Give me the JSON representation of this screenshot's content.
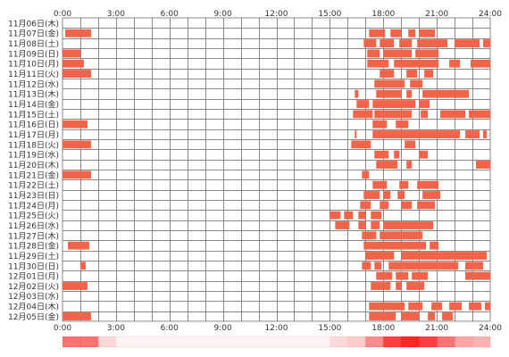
{
  "chart_data": {
    "type": "heatmap",
    "x_unit": "hour",
    "xlim": [
      0,
      24
    ],
    "x_ticks": [
      "0:00",
      "3:00",
      "6:00",
      "9:00",
      "12:00",
      "15:00",
      "18:00",
      "21:00",
      "24:00"
    ],
    "grid": true,
    "colors": {
      "activity": "#f2644a",
      "activity_light": "#f7a080",
      "grid": "#888888",
      "strip": "#ff0000"
    },
    "rows": [
      {
        "label": "11月06日(木)",
        "spans": []
      },
      {
        "label": "11月07日(金)",
        "spans": [
          [
            0.15,
            1.6
          ],
          [
            17.2,
            18.1
          ],
          [
            18.4,
            19.0
          ],
          [
            19.4,
            19.8
          ],
          [
            20.0,
            20.9
          ]
        ]
      },
      {
        "label": "11月08日(土)",
        "spans": [
          [
            16.9,
            17.6
          ],
          [
            17.8,
            18.6
          ],
          [
            18.9,
            19.6
          ],
          [
            19.9,
            21.6
          ],
          [
            22.0,
            23.4
          ],
          [
            23.6,
            24.0
          ]
        ]
      },
      {
        "label": "11月09日(日)",
        "spans": [
          [
            0.0,
            1.0
          ],
          [
            17.1,
            17.8
          ],
          [
            18.0,
            19.6
          ],
          [
            19.8,
            21.1
          ]
        ]
      },
      {
        "label": "11月10日(月)",
        "spans": [
          [
            0.0,
            1.2
          ],
          [
            17.1,
            18.3
          ],
          [
            18.6,
            21.1
          ],
          [
            21.7,
            22.3
          ],
          [
            22.9,
            24.0
          ]
        ]
      },
      {
        "label": "11月11日(火)",
        "spans": [
          [
            0.0,
            1.6
          ],
          [
            17.8,
            18.6
          ],
          [
            19.3,
            19.9
          ],
          [
            20.3,
            20.8
          ]
        ]
      },
      {
        "label": "11月12日(水)",
        "spans": [
          [
            17.5,
            19.2
          ],
          [
            19.5,
            20.2
          ]
        ]
      },
      {
        "label": "11月13日(木)",
        "spans": [
          [
            16.4,
            16.6
          ],
          [
            17.6,
            19.0
          ],
          [
            19.3,
            19.6
          ],
          [
            20.2,
            22.8
          ]
        ]
      },
      {
        "label": "11月14日(金)",
        "spans": [
          [
            16.5,
            17.2
          ],
          [
            17.4,
            19.8
          ],
          [
            20.0,
            20.6
          ]
        ]
      },
      {
        "label": "11月15日(土)",
        "spans": [
          [
            16.3,
            17.4
          ],
          [
            17.5,
            19.6
          ],
          [
            20.1,
            20.5
          ],
          [
            21.2,
            22.6
          ],
          [
            22.8,
            24.0
          ]
        ]
      },
      {
        "label": "11月16日(日)",
        "spans": [
          [
            0.0,
            1.4
          ],
          [
            17.4,
            18.2
          ],
          [
            18.7,
            19.4
          ]
        ]
      },
      {
        "label": "11月17日(月)",
        "spans": [
          [
            16.4,
            16.5
          ],
          [
            17.4,
            22.3
          ],
          [
            22.6,
            23.4
          ],
          [
            23.6,
            23.8
          ]
        ]
      },
      {
        "label": "11月18日(火)",
        "spans": [
          [
            0.0,
            1.6
          ],
          [
            16.2,
            17.3
          ],
          [
            19.2,
            19.8
          ]
        ]
      },
      {
        "label": "11月19日(水)",
        "spans": [
          [
            17.5,
            18.3
          ],
          [
            18.6,
            18.9
          ],
          [
            20.0,
            20.5
          ]
        ]
      },
      {
        "label": "11月20日(木)",
        "spans": [
          [
            17.6,
            18.8
          ],
          [
            19.3,
            19.6
          ],
          [
            23.2,
            24.0
          ]
        ]
      },
      {
        "label": "11月21日(金)",
        "spans": [
          [
            0.0,
            1.6
          ],
          [
            16.8,
            17.2
          ]
        ]
      },
      {
        "label": "11月22日(土)",
        "spans": [
          [
            17.4,
            18.2
          ],
          [
            18.9,
            19.4
          ],
          [
            19.9,
            21.1
          ]
        ]
      },
      {
        "label": "11月23日(日)",
        "spans": [
          [
            16.9,
            17.8
          ],
          [
            18.0,
            18.4
          ],
          [
            18.8,
            19.2
          ],
          [
            20.2,
            21.2
          ]
        ]
      },
      {
        "label": "11月24日(月)",
        "spans": [
          [
            16.7,
            17.3
          ],
          [
            17.8,
            18.3
          ],
          [
            19.0,
            19.6
          ],
          [
            19.9,
            20.9
          ]
        ]
      },
      {
        "label": "11月25日(火)",
        "spans": [
          [
            15.0,
            15.6
          ],
          [
            15.8,
            16.3
          ],
          [
            16.6,
            17.0
          ],
          [
            17.3,
            17.9
          ]
        ]
      },
      {
        "label": "11月26日(水)",
        "spans": [
          [
            15.3,
            16.1
          ],
          [
            16.6,
            17.0
          ],
          [
            17.3,
            17.8
          ],
          [
            18.0,
            20.8
          ]
        ]
      },
      {
        "label": "11月27日(木)",
        "spans": [
          [
            16.8,
            17.6
          ],
          [
            17.8,
            20.2
          ]
        ]
      },
      {
        "label": "11月28日(金)",
        "spans": [
          [
            0.3,
            1.5
          ],
          [
            16.9,
            20.4
          ],
          [
            20.6,
            21.1
          ]
        ]
      },
      {
        "label": "11月29日(土)",
        "spans": [
          [
            17.0,
            18.6
          ],
          [
            19.0,
            23.8
          ]
        ]
      },
      {
        "label": "11月30日(日)",
        "spans": [
          [
            1.0,
            1.3
          ],
          [
            16.8,
            17.3
          ],
          [
            17.5,
            17.9
          ],
          [
            18.3,
            22.2
          ],
          [
            22.6,
            23.6
          ]
        ]
      },
      {
        "label": "12月01日(月)",
        "spans": [
          [
            17.6,
            18.5
          ],
          [
            18.7,
            19.4
          ],
          [
            19.6,
            20.5
          ],
          [
            22.6,
            24.0
          ]
        ]
      },
      {
        "label": "12月02日(火)",
        "spans": [
          [
            0.0,
            1.4
          ],
          [
            17.3,
            18.4
          ],
          [
            18.7,
            19.0
          ],
          [
            19.3,
            20.3
          ]
        ]
      },
      {
        "label": "12月03日(水)",
        "spans": []
      },
      {
        "label": "12月04日(木)",
        "spans": [
          [
            17.2,
            19.2
          ],
          [
            19.4,
            20.2
          ],
          [
            20.7,
            21.3
          ],
          [
            21.7,
            22.4
          ],
          [
            22.8,
            23.5
          ],
          [
            23.7,
            24.0
          ]
        ]
      },
      {
        "label": "12月05日(金)",
        "spans": [
          [
            0.0,
            1.6
          ],
          [
            17.2,
            18.7
          ],
          [
            19.0,
            20.0
          ],
          [
            20.5,
            20.9
          ],
          [
            21.3,
            21.9
          ]
        ]
      }
    ],
    "density_strip": {
      "description_axis": "aggregate activity by hour",
      "values": [
        0.55,
        0.55,
        0.15,
        0.05,
        0.05,
        0.05,
        0.05,
        0.05,
        0.05,
        0.05,
        0.05,
        0.05,
        0.05,
        0.05,
        0.05,
        0.15,
        0.2,
        0.45,
        0.75,
        0.85,
        0.75,
        0.55,
        0.35,
        0.3
      ]
    }
  }
}
